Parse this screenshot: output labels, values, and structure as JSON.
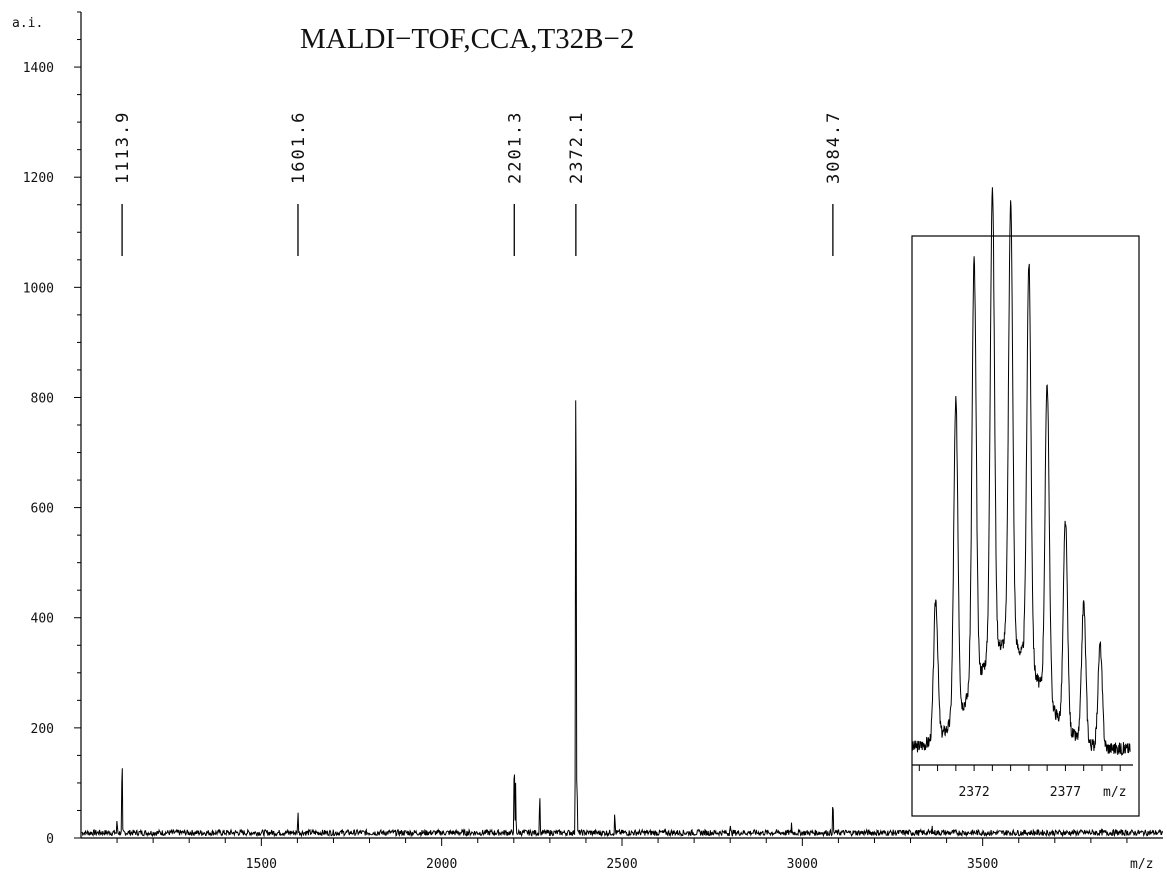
{
  "chart_data": {
    "type": "line",
    "title": "MALDI−TOF,CCA,T32B−2",
    "xlabel": "m/z",
    "ylabel": "a.i.",
    "xlim": [
      1000,
      4000
    ],
    "ylim": [
      0,
      1500
    ],
    "x_ticks": [
      1500,
      2000,
      2500,
      3000,
      3500
    ],
    "x_tick_labels": [
      "1500",
      "2000",
      "2500",
      "3000",
      "3500"
    ],
    "y_ticks": [
      0,
      200,
      400,
      600,
      800,
      1000,
      1200,
      1400
    ],
    "y_tick_labels": [
      "0",
      "200",
      "400",
      "600",
      "800",
      "1000",
      "1200",
      "1400"
    ],
    "grid": false,
    "baseline_level": 12,
    "peaks": [
      {
        "x": 1100,
        "y": 35
      },
      {
        "x": 1113.9,
        "y": 152
      },
      {
        "x": 1601.6,
        "y": 50
      },
      {
        "x": 2201.3,
        "y": 148
      },
      {
        "x": 2205.0,
        "y": 100
      },
      {
        "x": 2272.0,
        "y": 82
      },
      {
        "x": 2372.1,
        "y": 955
      },
      {
        "x": 2375.0,
        "y": 120
      },
      {
        "x": 2480.0,
        "y": 48
      },
      {
        "x": 2800.0,
        "y": 25
      },
      {
        "x": 2970.0,
        "y": 28
      },
      {
        "x": 3084.7,
        "y": 72
      },
      {
        "x": 3360.0,
        "y": 22
      }
    ],
    "peak_labels": [
      {
        "x": 1113.9,
        "text": "1113.9"
      },
      {
        "x": 1601.6,
        "text": "1601.6"
      },
      {
        "x": 2201.3,
        "text": "2201.3"
      },
      {
        "x": 2372.1,
        "text": "2372.1"
      },
      {
        "x": 3084.7,
        "text": "3084.7"
      }
    ],
    "inset": {
      "type": "line",
      "xlim": [
        2368.6,
        2380.7
      ],
      "ylim": [
        0,
        1070
      ],
      "x_ticks": [
        2372,
        2377
      ],
      "x_tick_labels": [
        "2372",
        "2377"
      ],
      "xlabel": "m/z",
      "baseline_level": 35,
      "peaks": [
        {
          "x": 2369.9,
          "y": 300
        },
        {
          "x": 2371.0,
          "y": 680
        },
        {
          "x": 2372.0,
          "y": 915
        },
        {
          "x": 2373.0,
          "y": 1010
        },
        {
          "x": 2374.0,
          "y": 955
        },
        {
          "x": 2375.0,
          "y": 865
        },
        {
          "x": 2376.0,
          "y": 685
        },
        {
          "x": 2377.0,
          "y": 445
        },
        {
          "x": 2378.0,
          "y": 300
        },
        {
          "x": 2378.9,
          "y": 220
        }
      ]
    }
  }
}
